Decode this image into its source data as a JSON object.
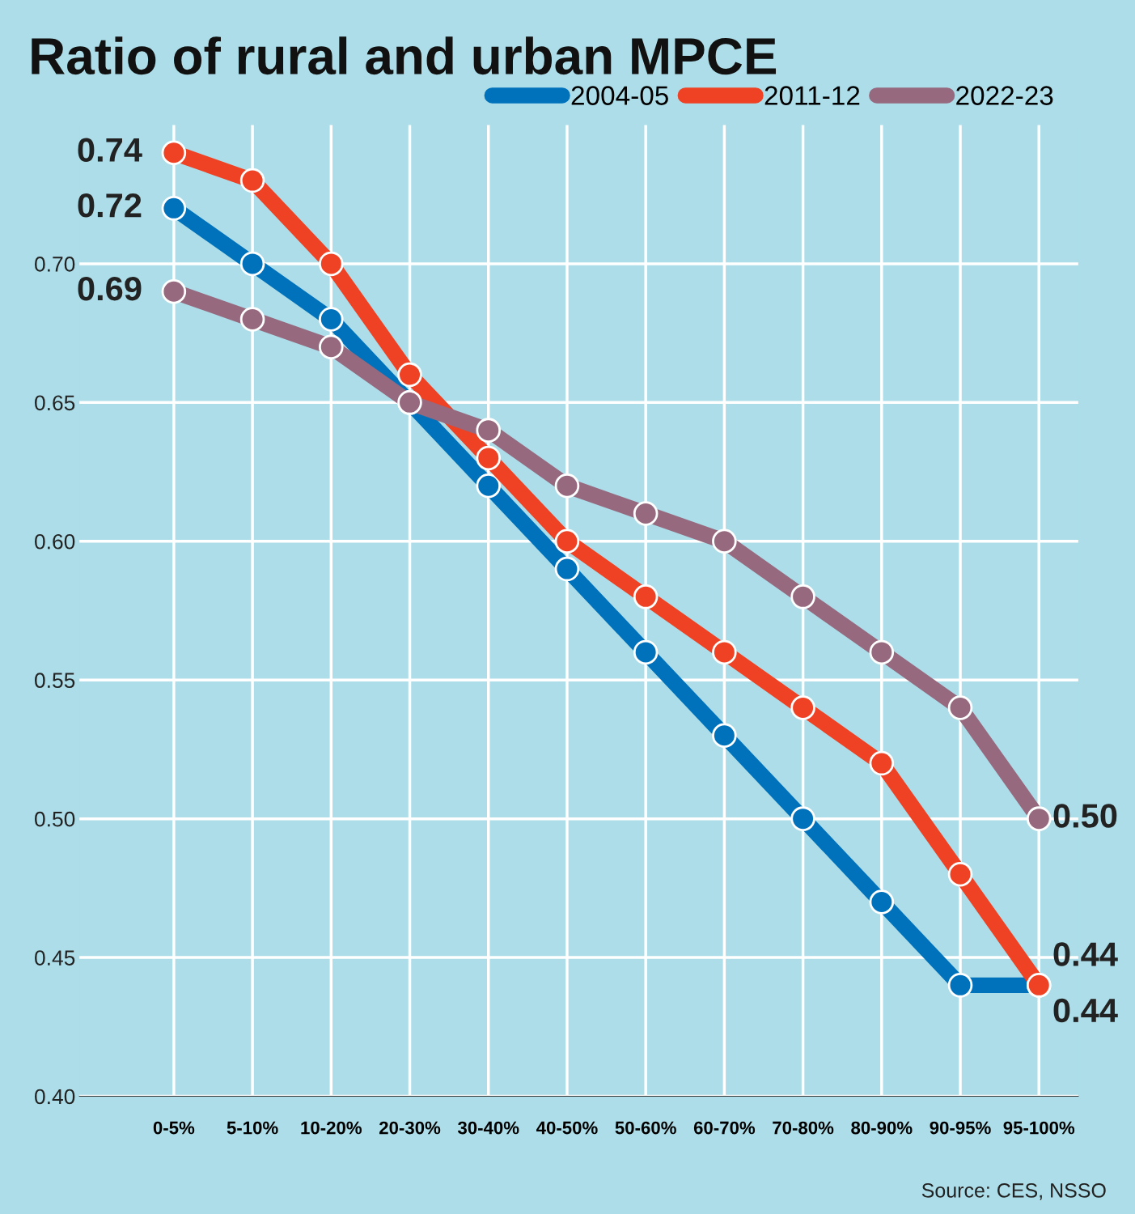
{
  "chart_data": {
    "type": "line",
    "title": "Ratio of rural and urban MPCE",
    "categories": [
      "0-5%",
      "5-10%",
      "10-20%",
      "20-30%",
      "30-40%",
      "40-50%",
      "50-60%",
      "60-70%",
      "70-80%",
      "80-90%",
      "90-95%",
      "95-100%"
    ],
    "series": [
      {
        "name": "2004-05",
        "color": "#0072bc",
        "values": [
          0.72,
          0.7,
          0.68,
          0.65,
          0.62,
          0.59,
          0.56,
          0.53,
          0.5,
          0.47,
          0.44,
          0.44
        ],
        "value_labels": [
          "0.72",
          null,
          null,
          null,
          null,
          null,
          null,
          null,
          null,
          null,
          null,
          "0.44"
        ]
      },
      {
        "name": "2011-12",
        "color": "#ef4123",
        "values": [
          0.74,
          0.73,
          0.7,
          0.66,
          0.63,
          0.6,
          0.58,
          0.56,
          0.54,
          0.52,
          0.48,
          0.44
        ],
        "value_labels": [
          "0.74",
          null,
          null,
          null,
          null,
          null,
          null,
          null,
          null,
          null,
          null,
          "0.44"
        ]
      },
      {
        "name": "2022-23",
        "color": "#96697e",
        "values": [
          0.69,
          0.68,
          0.67,
          0.65,
          0.64,
          0.62,
          0.61,
          0.6,
          0.58,
          0.56,
          0.54,
          0.5
        ],
        "value_labels": [
          "0.69",
          null,
          null,
          null,
          null,
          null,
          null,
          null,
          null,
          null,
          null,
          "0.50"
        ]
      }
    ],
    "ylim": [
      0.4,
      0.75
    ],
    "yticks": [
      {
        "value": 0.4,
        "label": "0.40"
      },
      {
        "value": 0.45,
        "label": "0.45"
      },
      {
        "value": 0.5,
        "label": "0.50"
      },
      {
        "value": 0.55,
        "label": "0.55"
      },
      {
        "value": 0.6,
        "label": "0.60"
      },
      {
        "value": 0.65,
        "label": "0.65"
      },
      {
        "value": 0.7,
        "label": "0.70"
      }
    ],
    "grid": true,
    "legend": "top right",
    "marker": "circle",
    "line_style": "solid",
    "annotations": [
      "Source: CES, NSSO"
    ]
  }
}
